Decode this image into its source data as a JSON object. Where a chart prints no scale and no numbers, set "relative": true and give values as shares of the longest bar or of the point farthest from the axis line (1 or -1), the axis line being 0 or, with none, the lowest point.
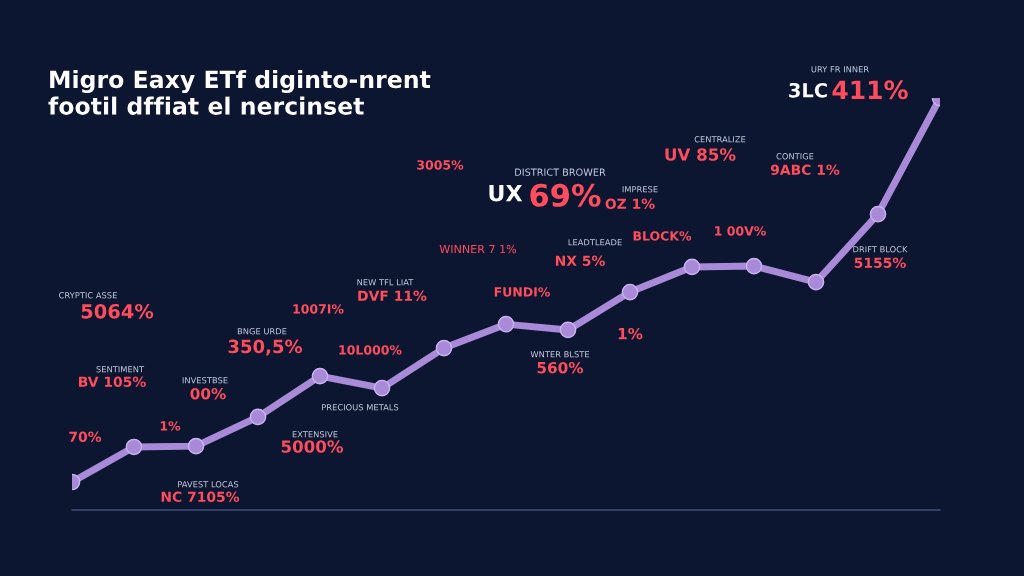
{
  "chart_data": {
    "type": "line",
    "title": "Migro Eaxy ETf diginto-nrent\nfootil dffiat el nercinset",
    "relative": true,
    "marker": "circle",
    "grid": false,
    "legend": false,
    "categories": [
      null,
      null,
      null,
      null,
      null,
      null,
      null,
      null,
      null,
      null,
      null,
      null,
      null,
      null,
      null
    ],
    "series": [
      {
        "color": "#a98ad8",
        "values": [
          0.068,
          0.153,
          0.155,
          0.226,
          0.325,
          0.296,
          0.393,
          0.451,
          0.437,
          0.529,
          0.59,
          0.592,
          0.553,
          0.718,
          1.0
        ]
      }
    ],
    "annotations": [
      "CRYPTIC ASSE",
      "5064%",
      "SENTIMENT",
      "BV 105%",
      "70%",
      "1%",
      "INVESTBSE",
      "00%",
      "PAVEST LOCAS",
      "NC 7105%",
      "BNGE URDE",
      "350,5%",
      "1007I%",
      "NEW TFL LIAT",
      "DVF 11%",
      "10L000%",
      "PRECIOUS METALS",
      "EXTENSIVE",
      "5000%",
      "3005%",
      "WINNER 7 1%",
      "FUNDI%",
      "DISTRICT BROWER",
      "UX",
      "69%",
      "WNTER BLSTE",
      "560%",
      "LEADTLEADE",
      "NX 5%",
      "1%",
      "IMPRESE",
      "OZ 1%",
      "BLOCK%",
      "CENTRALIZE",
      "UV 85%",
      "1 00V%",
      "CONTIGE",
      "9ABC 1%",
      "URY FR INNER",
      "3LC",
      "411%",
      "DRIFT BLOCK",
      "5155%"
    ]
  }
}
